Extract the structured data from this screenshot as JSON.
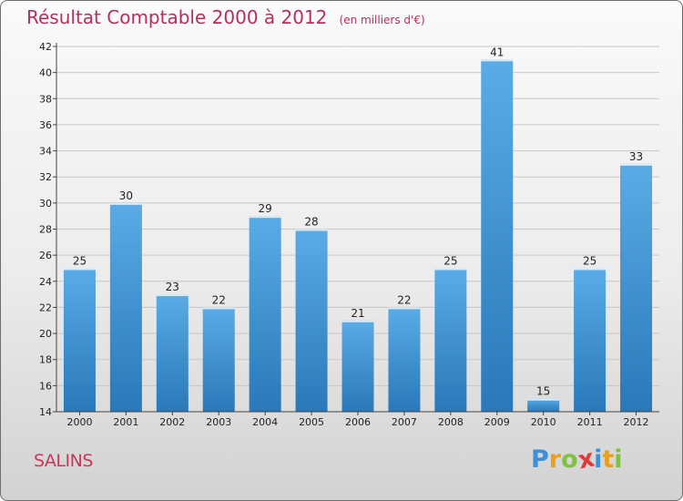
{
  "header": {
    "title": "Résultat Comptable 2000 à 2012",
    "subtitle": "(en milliers d'€)"
  },
  "footer": {
    "commune": "SALINS",
    "brand_letters": [
      "P",
      "r",
      "o",
      "x",
      "i",
      "t",
      "i"
    ],
    "brand_colors": [
      "#3d8fd8",
      "#e8a020",
      "#7fc242",
      "#e03a3a",
      "#3d8fd8",
      "#e8a020",
      "#7fc242"
    ]
  },
  "colors": {
    "bar_top": "#5aabe6",
    "bar_bottom": "#2a78b8",
    "axis": "#444444",
    "grid": "#c7c7c7",
    "title": "#b5305a"
  },
  "chart_data": {
    "type": "bar",
    "title": "Résultat Comptable 2000 à 2012",
    "subtitle": "(en milliers d'€)",
    "categories": [
      "2000",
      "2001",
      "2002",
      "2003",
      "2004",
      "2005",
      "2006",
      "2007",
      "2008",
      "2009",
      "2010",
      "2011",
      "2012"
    ],
    "values": [
      25,
      30,
      23,
      22,
      29,
      28,
      21,
      22,
      25,
      41,
      15,
      25,
      33
    ],
    "ylim": [
      14,
      42
    ],
    "yticks": [
      14,
      16,
      18,
      20,
      22,
      24,
      26,
      28,
      30,
      32,
      34,
      36,
      38,
      40,
      42
    ],
    "grid": true,
    "xlabel": "",
    "ylabel": ""
  }
}
